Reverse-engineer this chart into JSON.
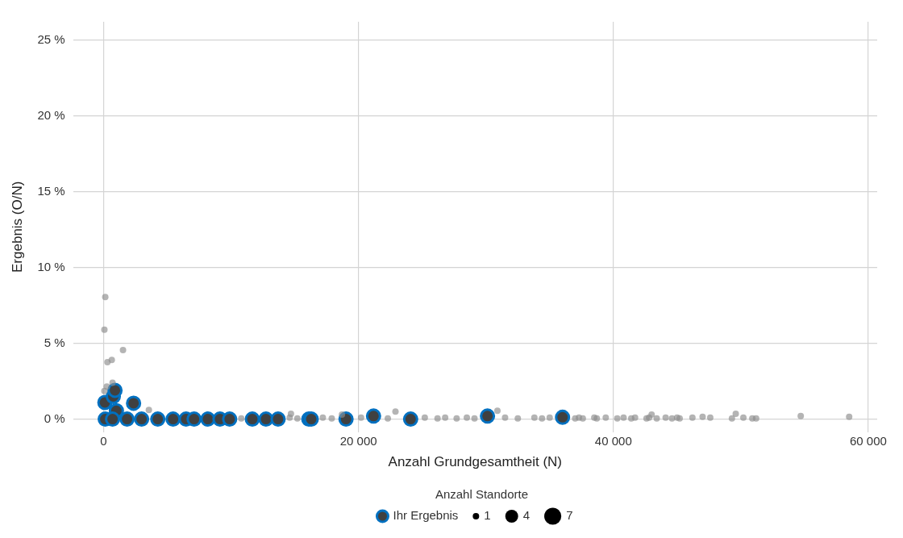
{
  "chart_data": {
    "type": "bubble",
    "xlabel": "Anzahl Grundgesamtheit (N)",
    "ylabel": "Ergebnis (O/N)",
    "legend_title": "Anzahl Standorte",
    "legend": "bottom",
    "grid": true,
    "marker": "circle",
    "xlim": [
      -2400,
      60700
    ],
    "ylim": [
      -0.85,
      26.2
    ],
    "xticks": [
      {
        "value": 0,
        "label": "0"
      },
      {
        "value": 20000,
        "label": "20 000"
      },
      {
        "value": 40000,
        "label": "40 000"
      },
      {
        "value": 60000,
        "label": "60 000"
      }
    ],
    "yticks": [
      {
        "value": 0,
        "label": "0 %"
      },
      {
        "value": 5,
        "label": "5 %"
      },
      {
        "value": 10,
        "label": "10 %"
      },
      {
        "value": 15,
        "label": "15 %"
      },
      {
        "value": 20,
        "label": "20 %"
      },
      {
        "value": 25,
        "label": "25 %"
      }
    ],
    "size_legend": [
      1,
      4,
      7
    ],
    "series": [
      {
        "color": "#8c8c8c",
        "x": [
          130,
          60,
          300,
          640,
          1520,
          700,
          250,
          60,
          3550,
          10800,
          14600,
          15200,
          17200,
          17900,
          20200,
          22300,
          14700,
          18700,
          22900,
          25200,
          26200,
          26800,
          27700,
          28500,
          29100,
          30900,
          31500,
          32500,
          33800,
          34400,
          35000,
          37000,
          37300,
          37600,
          38500,
          38700,
          39400,
          40300,
          40800,
          41400,
          41700,
          42600,
          42800,
          43000,
          43400,
          44100,
          44600,
          45000,
          45200,
          46200,
          47000,
          47600,
          49300,
          49600,
          50200,
          50900,
          51200,
          54700,
          58500
        ],
        "values": [
          8.05,
          5.9,
          3.75,
          3.9,
          4.55,
          2.4,
          2.15,
          1.85,
          0.6,
          0.05,
          0.1,
          0.05,
          0.1,
          0.05,
          0.1,
          0.05,
          0.35,
          0.3,
          0.5,
          0.1,
          0.05,
          0.1,
          0.05,
          0.1,
          0.05,
          0.55,
          0.1,
          0.05,
          0.1,
          0.05,
          0.1,
          0.05,
          0.1,
          0.05,
          0.1,
          0.05,
          0.1,
          0.05,
          0.1,
          0.05,
          0.1,
          0.05,
          0.1,
          0.3,
          0.05,
          0.1,
          0.05,
          0.1,
          0.05,
          0.1,
          0.15,
          0.1,
          0.05,
          0.35,
          0.1,
          0.05,
          0.05,
          0.2,
          0.15
        ],
        "sizes": [
          1,
          1,
          1,
          1,
          1,
          1,
          1,
          1,
          1,
          1,
          1,
          1,
          1,
          1,
          1,
          1,
          1,
          1,
          1,
          1,
          1,
          1,
          1,
          1,
          1,
          1,
          1,
          1,
          1,
          1,
          1,
          1,
          1,
          1,
          1,
          1,
          1,
          1,
          1,
          1,
          1,
          1,
          1,
          1,
          1,
          1,
          1,
          1,
          1,
          1,
          1,
          1,
          1,
          1,
          1,
          1,
          1,
          1,
          1
        ]
      },
      {
        "name": "Ihr Ergebnis",
        "color": "#0070c0",
        "x": [
          100,
          760,
          890,
          2350,
          1000,
          127,
          700,
          1840,
          2980,
          4250,
          5450,
          6470,
          7100,
          8180,
          9130,
          9890,
          11670,
          12740,
          13690,
          16100,
          16290,
          19020,
          21180,
          24090,
          30120,
          36010
        ],
        "values": [
          1.1,
          1.5,
          1.9,
          1.05,
          0.55,
          0,
          0,
          0,
          0,
          0,
          0,
          0,
          0,
          0,
          0,
          0,
          0,
          0,
          0,
          0,
          0,
          0,
          0.2,
          0,
          0.2,
          0.12
        ],
        "sizes": [
          4,
          4,
          4,
          4,
          4,
          4,
          4,
          4,
          4,
          4,
          4,
          4,
          4,
          4,
          4,
          4,
          4,
          4,
          4,
          4,
          4,
          4,
          4,
          4,
          4,
          4
        ]
      }
    ]
  }
}
